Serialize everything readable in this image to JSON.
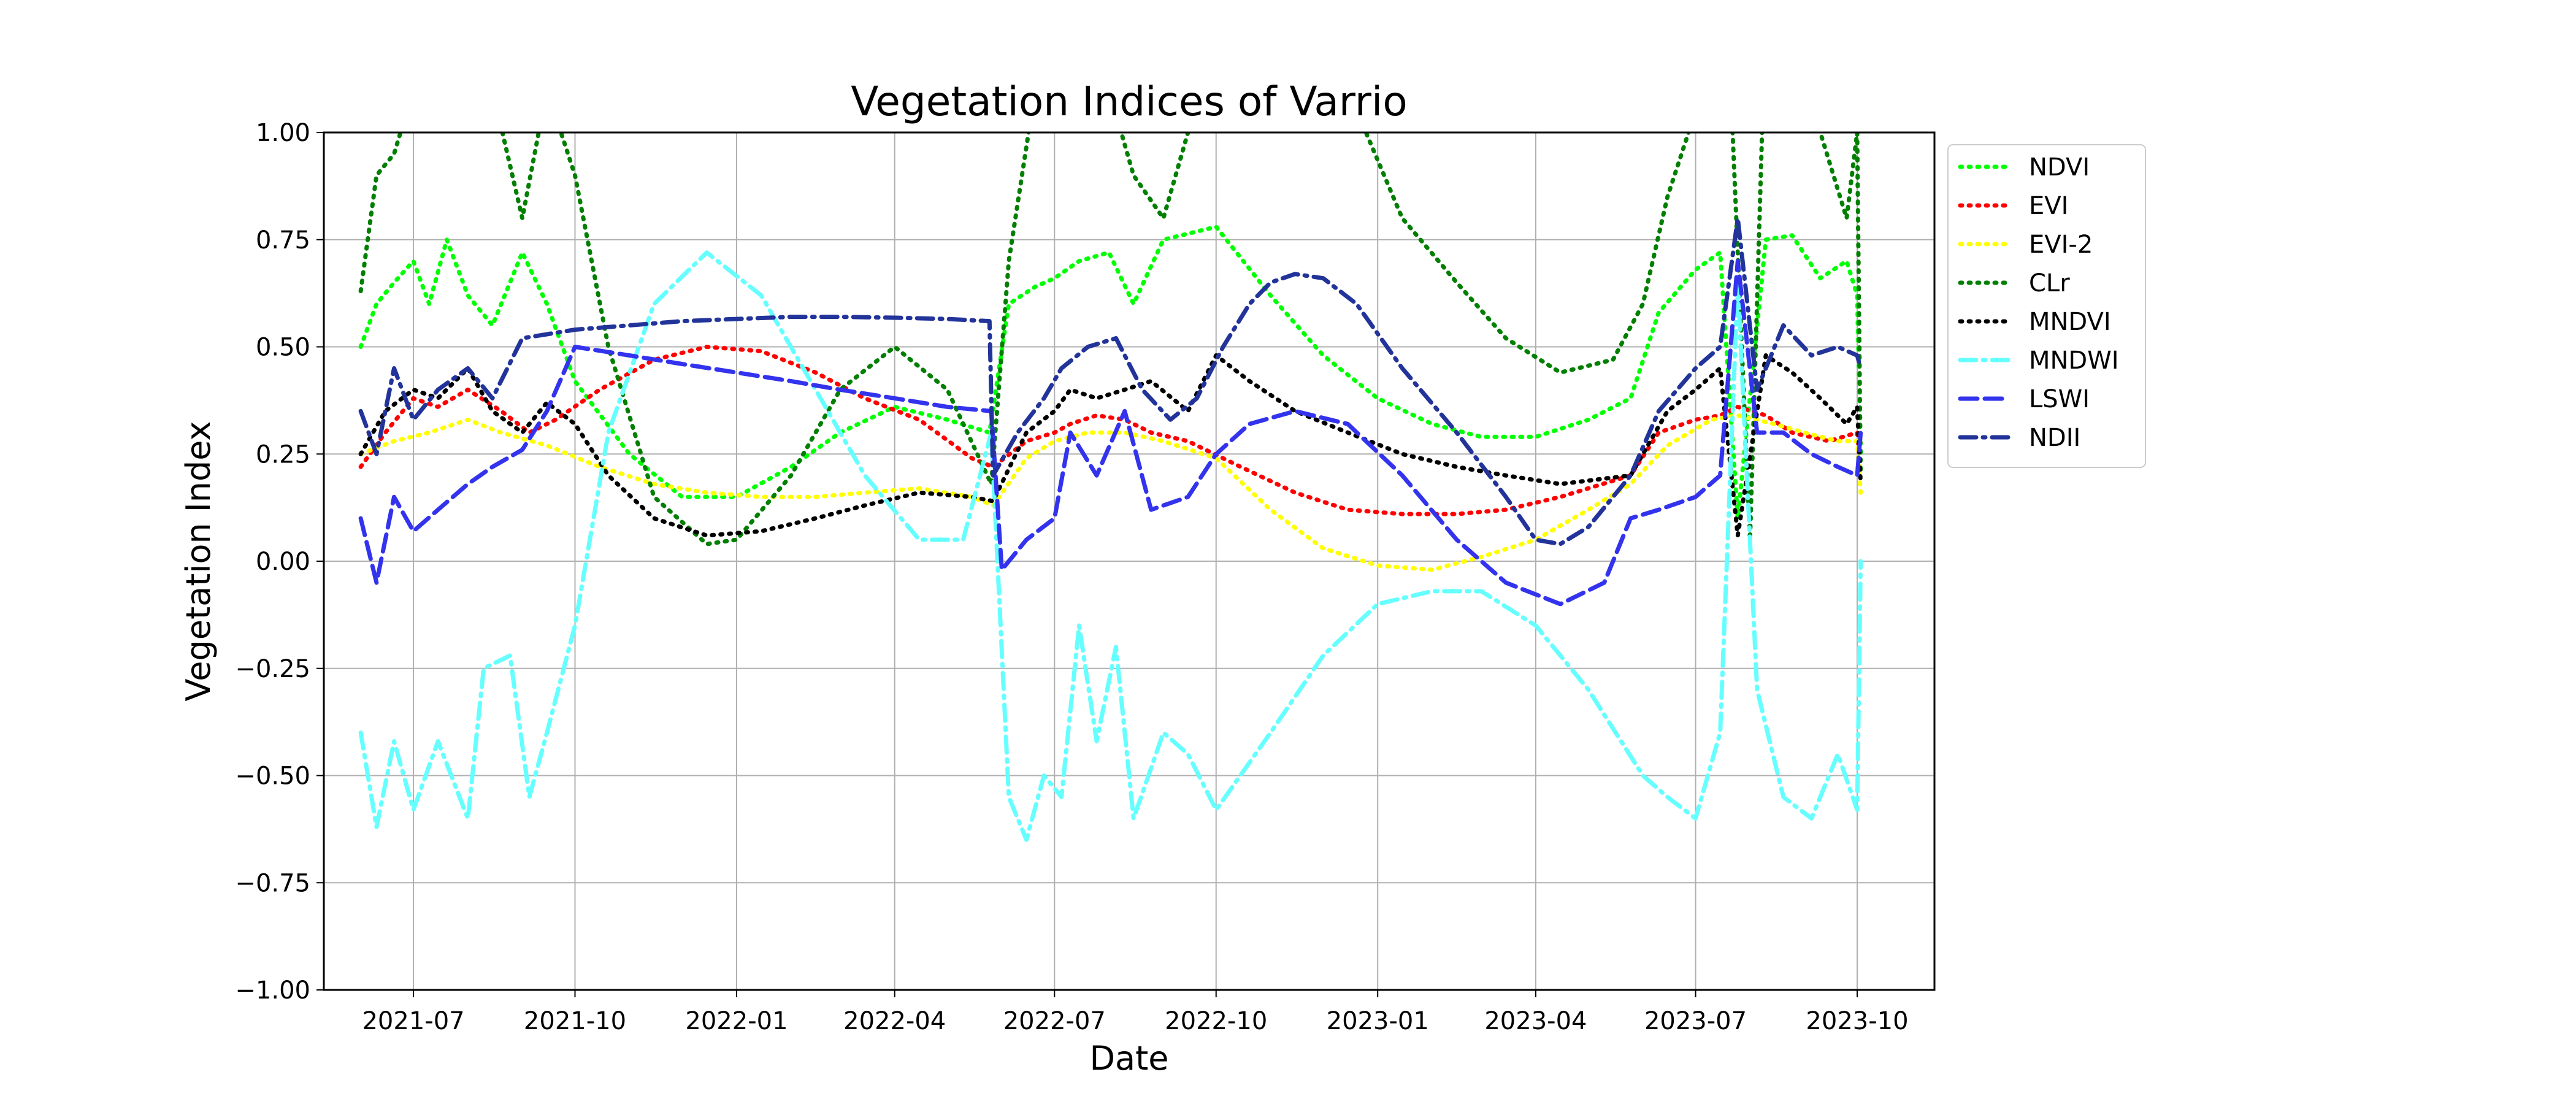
{
  "chart_data": {
    "type": "line",
    "title": "Vegetation Indices of Varrio",
    "xlabel": "Date",
    "ylabel": "Vegetation Index",
    "ylim": [
      -1.0,
      1.0
    ],
    "yticks": [
      -1.0,
      -0.75,
      -0.5,
      -0.25,
      0.0,
      0.25,
      0.5,
      0.75,
      1.0
    ],
    "ytick_labels": [
      "−1.00",
      "−0.75",
      "−0.50",
      "−0.25",
      "0.00",
      "0.25",
      "0.50",
      "0.75",
      "1.00"
    ],
    "xlim": [
      "2021-05-11",
      "2023-11-14"
    ],
    "xticks": [
      "2021-07-01",
      "2021-10-01",
      "2022-01-01",
      "2022-04-01",
      "2022-07-01",
      "2022-10-01",
      "2023-01-01",
      "2023-04-01",
      "2023-07-01",
      "2023-10-01"
    ],
    "xtick_labels": [
      "2021-07",
      "2021-10",
      "2022-01",
      "2022-04",
      "2022-07",
      "2022-10",
      "2023-01",
      "2023-04",
      "2023-07",
      "2023-10"
    ],
    "grid": true,
    "legend_position": "outside-right",
    "series": [
      {
        "name": "NDVI",
        "color": "#00ff00",
        "style": "dotted",
        "x": [
          "2021-06-01",
          "2021-06-10",
          "2021-06-20",
          "2021-07-01",
          "2021-07-10",
          "2021-07-20",
          "2021-08-01",
          "2021-08-15",
          "2021-09-01",
          "2021-09-15",
          "2021-10-01",
          "2021-11-01",
          "2021-12-01",
          "2022-01-01",
          "2022-02-01",
          "2022-03-01",
          "2022-04-01",
          "2022-05-01",
          "2022-05-25",
          "2022-06-05",
          "2022-06-20",
          "2022-07-01",
          "2022-07-15",
          "2022-08-01",
          "2022-08-15",
          "2022-09-01",
          "2022-10-01",
          "2022-11-01",
          "2022-12-01",
          "2023-01-01",
          "2023-02-01",
          "2023-03-01",
          "2023-04-01",
          "2023-05-01",
          "2023-05-25",
          "2023-06-10",
          "2023-07-01",
          "2023-07-15",
          "2023-07-25",
          "2023-08-10",
          "2023-08-25",
          "2023-09-10",
          "2023-09-25",
          "2023-10-01",
          "2023-10-03"
        ],
        "y": [
          0.5,
          0.6,
          0.65,
          0.7,
          0.6,
          0.75,
          0.62,
          0.55,
          0.72,
          0.6,
          0.42,
          0.25,
          0.15,
          0.15,
          0.22,
          0.3,
          0.36,
          0.33,
          0.3,
          0.6,
          0.64,
          0.66,
          0.7,
          0.72,
          0.6,
          0.75,
          0.78,
          0.62,
          0.48,
          0.38,
          0.32,
          0.29,
          0.29,
          0.33,
          0.38,
          0.58,
          0.68,
          0.72,
          0.1,
          0.75,
          0.76,
          0.66,
          0.7,
          0.62,
          0.25
        ]
      },
      {
        "name": "EVI",
        "color": "#ff0000",
        "style": "dotted",
        "x": [
          "2021-06-01",
          "2021-06-15",
          "2021-07-01",
          "2021-07-15",
          "2021-08-01",
          "2021-08-20",
          "2021-09-05",
          "2021-09-20",
          "2021-10-15",
          "2021-11-15",
          "2021-12-15",
          "2022-01-15",
          "2022-02-15",
          "2022-03-15",
          "2022-04-15",
          "2022-05-15",
          "2022-05-27",
          "2022-06-15",
          "2022-07-01",
          "2022-07-10",
          "2022-07-25",
          "2022-08-10",
          "2022-08-25",
          "2022-09-15",
          "2022-10-15",
          "2022-11-15",
          "2022-12-15",
          "2023-01-15",
          "2023-02-15",
          "2023-03-15",
          "2023-04-15",
          "2023-05-25",
          "2023-06-10",
          "2023-07-01",
          "2023-07-15",
          "2023-07-25",
          "2023-08-10",
          "2023-08-25",
          "2023-09-15",
          "2023-10-01",
          "2023-10-03"
        ],
        "y": [
          0.22,
          0.3,
          0.38,
          0.36,
          0.4,
          0.35,
          0.3,
          0.33,
          0.4,
          0.47,
          0.5,
          0.49,
          0.44,
          0.38,
          0.33,
          0.24,
          0.22,
          0.28,
          0.3,
          0.32,
          0.34,
          0.33,
          0.3,
          0.28,
          0.22,
          0.16,
          0.12,
          0.11,
          0.11,
          0.12,
          0.15,
          0.2,
          0.3,
          0.33,
          0.34,
          0.36,
          0.34,
          0.3,
          0.28,
          0.3,
          0.2
        ]
      },
      {
        "name": "EVI-2",
        "color": "#ffff00",
        "style": "dotted",
        "x": [
          "2021-06-01",
          "2021-06-20",
          "2021-07-10",
          "2021-08-01",
          "2021-08-20",
          "2021-09-15",
          "2021-10-15",
          "2021-11-15",
          "2021-12-15",
          "2022-01-15",
          "2022-02-15",
          "2022-03-15",
          "2022-04-15",
          "2022-05-15",
          "2022-05-27",
          "2022-06-15",
          "2022-07-01",
          "2022-07-20",
          "2022-08-10",
          "2022-09-01",
          "2022-10-01",
          "2022-11-01",
          "2022-12-01",
          "2023-01-01",
          "2023-02-01",
          "2023-03-01",
          "2023-04-01",
          "2023-05-01",
          "2023-05-25",
          "2023-06-15",
          "2023-07-10",
          "2023-07-25",
          "2023-08-15",
          "2023-09-01",
          "2023-09-20",
          "2023-10-01",
          "2023-10-03"
        ],
        "y": [
          0.25,
          0.28,
          0.3,
          0.33,
          0.3,
          0.27,
          0.22,
          0.18,
          0.16,
          0.15,
          0.15,
          0.16,
          0.17,
          0.15,
          0.13,
          0.24,
          0.28,
          0.3,
          0.3,
          0.28,
          0.24,
          0.12,
          0.03,
          -0.01,
          -0.02,
          0.01,
          0.05,
          0.12,
          0.18,
          0.27,
          0.33,
          0.34,
          0.32,
          0.3,
          0.28,
          0.28,
          0.16
        ]
      },
      {
        "name": "CLr",
        "color": "#007f00",
        "style": "dotted",
        "x": [
          "2021-06-01",
          "2021-06-10",
          "2021-06-20",
          "2021-07-01",
          "2021-07-15",
          "2021-08-01",
          "2021-08-15",
          "2021-09-01",
          "2021-09-15",
          "2021-10-01",
          "2021-10-20",
          "2021-11-15",
          "2021-12-15",
          "2022-01-01",
          "2022-02-01",
          "2022-03-01",
          "2022-04-01",
          "2022-05-01",
          "2022-05-26",
          "2022-06-05",
          "2022-06-20",
          "2022-07-01",
          "2022-07-10",
          "2022-07-25",
          "2022-08-15",
          "2022-09-01",
          "2022-09-15",
          "2022-10-15",
          "2022-11-15",
          "2022-12-15",
          "2023-01-15",
          "2023-02-15",
          "2023-03-15",
          "2023-04-15",
          "2023-05-15",
          "2023-06-01",
          "2023-06-15",
          "2023-07-05",
          "2023-07-20",
          "2023-08-01",
          "2023-08-10",
          "2023-08-25",
          "2023-09-10",
          "2023-09-25",
          "2023-10-01",
          "2023-10-03"
        ],
        "y": [
          0.63,
          0.9,
          0.95,
          1.1,
          1.2,
          1.3,
          1.1,
          0.8,
          1.1,
          0.9,
          0.5,
          0.15,
          0.04,
          0.05,
          0.2,
          0.4,
          0.5,
          0.4,
          0.18,
          0.7,
          1.1,
          1.2,
          1.0,
          1.2,
          0.9,
          0.8,
          1.0,
          1.3,
          1.3,
          1.1,
          0.8,
          0.65,
          0.52,
          0.44,
          0.47,
          0.6,
          0.85,
          1.1,
          1.2,
          0.05,
          1.3,
          1.1,
          1.0,
          0.8,
          1.0,
          0.2
        ]
      },
      {
        "name": "MNDVI",
        "color": "#000000",
        "style": "dotted",
        "x": [
          "2021-06-01",
          "2021-06-15",
          "2021-07-01",
          "2021-07-15",
          "2021-08-01",
          "2021-08-15",
          "2021-09-01",
          "2021-09-15",
          "2021-10-01",
          "2021-10-20",
          "2021-11-15",
          "2021-12-15",
          "2022-01-15",
          "2022-02-15",
          "2022-03-15",
          "2022-04-15",
          "2022-05-15",
          "2022-05-27",
          "2022-06-15",
          "2022-07-01",
          "2022-07-10",
          "2022-07-25",
          "2022-08-10",
          "2022-08-25",
          "2022-09-15",
          "2022-10-01",
          "2022-10-20",
          "2022-11-15",
          "2022-12-15",
          "2023-01-15",
          "2023-02-15",
          "2023-03-15",
          "2023-04-15",
          "2023-05-25",
          "2023-06-15",
          "2023-07-01",
          "2023-07-15",
          "2023-07-25",
          "2023-08-10",
          "2023-08-25",
          "2023-09-10",
          "2023-09-25",
          "2023-10-01",
          "2023-10-03"
        ],
        "y": [
          0.25,
          0.35,
          0.4,
          0.38,
          0.45,
          0.35,
          0.3,
          0.37,
          0.32,
          0.2,
          0.1,
          0.06,
          0.07,
          0.1,
          0.13,
          0.16,
          0.15,
          0.14,
          0.3,
          0.35,
          0.4,
          0.38,
          0.4,
          0.42,
          0.35,
          0.48,
          0.42,
          0.35,
          0.3,
          0.25,
          0.22,
          0.2,
          0.18,
          0.2,
          0.35,
          0.4,
          0.45,
          0.06,
          0.48,
          0.44,
          0.38,
          0.32,
          0.36,
          0.18
        ]
      },
      {
        "name": "MNDWI",
        "color": "#66ffff",
        "style": "dashdot",
        "x": [
          "2021-06-01",
          "2021-06-10",
          "2021-06-20",
          "2021-07-01",
          "2021-07-15",
          "2021-08-01",
          "2021-08-10",
          "2021-08-25",
          "2021-09-05",
          "2021-09-15",
          "2021-10-01",
          "2021-10-20",
          "2021-11-15",
          "2021-12-15",
          "2022-01-15",
          "2022-02-15",
          "2022-03-15",
          "2022-04-15",
          "2022-05-10",
          "2022-05-26",
          "2022-06-05",
          "2022-06-15",
          "2022-06-25",
          "2022-07-05",
          "2022-07-15",
          "2022-07-25",
          "2022-08-05",
          "2022-08-15",
          "2022-09-01",
          "2022-09-15",
          "2022-10-01",
          "2022-11-01",
          "2022-12-01",
          "2023-01-01",
          "2023-02-01",
          "2023-03-01",
          "2023-04-01",
          "2023-05-01",
          "2023-06-01",
          "2023-06-15",
          "2023-07-01",
          "2023-07-15",
          "2023-07-25",
          "2023-08-05",
          "2023-08-20",
          "2023-09-05",
          "2023-09-20",
          "2023-10-01",
          "2023-10-03"
        ],
        "y": [
          -0.4,
          -0.62,
          -0.42,
          -0.58,
          -0.42,
          -0.6,
          -0.25,
          -0.22,
          -0.55,
          -0.4,
          -0.15,
          0.3,
          0.6,
          0.72,
          0.62,
          0.4,
          0.2,
          0.05,
          0.05,
          0.3,
          -0.55,
          -0.65,
          -0.5,
          -0.55,
          -0.15,
          -0.42,
          -0.2,
          -0.6,
          -0.4,
          -0.45,
          -0.58,
          -0.4,
          -0.22,
          -0.1,
          -0.07,
          -0.07,
          -0.15,
          -0.3,
          -0.5,
          -0.55,
          -0.6,
          -0.4,
          0.65,
          -0.3,
          -0.55,
          -0.6,
          -0.45,
          -0.58,
          0.0
        ]
      },
      {
        "name": "LSWI",
        "color": "#3333ee",
        "style": "dashed",
        "x": [
          "2021-06-01",
          "2021-06-10",
          "2021-06-20",
          "2021-07-01",
          "2021-07-15",
          "2021-08-01",
          "2021-08-15",
          "2021-09-01",
          "2021-09-15",
          "2021-10-01",
          "2021-11-01",
          "2021-12-01",
          "2022-01-01",
          "2022-02-01",
          "2022-03-01",
          "2022-04-01",
          "2022-05-01",
          "2022-05-26",
          "2022-06-01",
          "2022-06-15",
          "2022-07-01",
          "2022-07-10",
          "2022-07-25",
          "2022-08-10",
          "2022-08-25",
          "2022-09-15",
          "2022-10-01",
          "2022-10-20",
          "2022-11-15",
          "2022-12-15",
          "2023-01-15",
          "2023-02-15",
          "2023-03-15",
          "2023-04-15",
          "2023-05-10",
          "2023-05-25",
          "2023-06-10",
          "2023-07-01",
          "2023-07-15",
          "2023-07-25",
          "2023-08-05",
          "2023-08-20",
          "2023-09-05",
          "2023-09-20",
          "2023-10-01",
          "2023-10-03"
        ],
        "y": [
          0.1,
          -0.05,
          0.15,
          0.07,
          0.12,
          0.18,
          0.22,
          0.26,
          0.35,
          0.5,
          0.48,
          0.46,
          0.44,
          0.42,
          0.4,
          0.38,
          0.36,
          0.35,
          -0.02,
          0.05,
          0.1,
          0.3,
          0.2,
          0.35,
          0.12,
          0.15,
          0.25,
          0.32,
          0.35,
          0.32,
          0.2,
          0.05,
          -0.05,
          -0.1,
          -0.05,
          0.1,
          0.12,
          0.15,
          0.2,
          0.7,
          0.3,
          0.3,
          0.25,
          0.22,
          0.2,
          0.3
        ]
      },
      {
        "name": "NDII",
        "color": "#22339a",
        "style": "dashdot",
        "x": [
          "2021-06-01",
          "2021-06-10",
          "2021-06-20",
          "2021-07-01",
          "2021-07-15",
          "2021-08-01",
          "2021-08-15",
          "2021-09-01",
          "2021-10-01",
          "2021-11-01",
          "2021-12-01",
          "2022-01-01",
          "2022-02-01",
          "2022-03-01",
          "2022-04-01",
          "2022-05-01",
          "2022-05-25",
          "2022-05-27",
          "2022-06-10",
          "2022-06-25",
          "2022-07-05",
          "2022-07-20",
          "2022-08-05",
          "2022-08-20",
          "2022-09-05",
          "2022-09-20",
          "2022-10-05",
          "2022-10-20",
          "2022-11-01",
          "2022-11-15",
          "2022-12-01",
          "2022-12-20",
          "2023-01-15",
          "2023-02-15",
          "2023-03-15",
          "2023-04-01",
          "2023-04-15",
          "2023-05-01",
          "2023-05-25",
          "2023-06-10",
          "2023-07-01",
          "2023-07-15",
          "2023-07-25",
          "2023-08-05",
          "2023-08-20",
          "2023-09-05",
          "2023-09-20",
          "2023-10-01",
          "2023-10-03"
        ],
        "y": [
          0.35,
          0.25,
          0.45,
          0.33,
          0.4,
          0.45,
          0.38,
          0.52,
          0.54,
          0.55,
          0.56,
          0.565,
          0.57,
          0.57,
          0.568,
          0.565,
          0.56,
          0.2,
          0.3,
          0.38,
          0.45,
          0.5,
          0.52,
          0.4,
          0.33,
          0.38,
          0.5,
          0.6,
          0.65,
          0.67,
          0.66,
          0.6,
          0.45,
          0.3,
          0.15,
          0.05,
          0.04,
          0.08,
          0.2,
          0.35,
          0.45,
          0.5,
          0.8,
          0.4,
          0.55,
          0.48,
          0.5,
          0.48,
          0.45
        ]
      }
    ]
  }
}
